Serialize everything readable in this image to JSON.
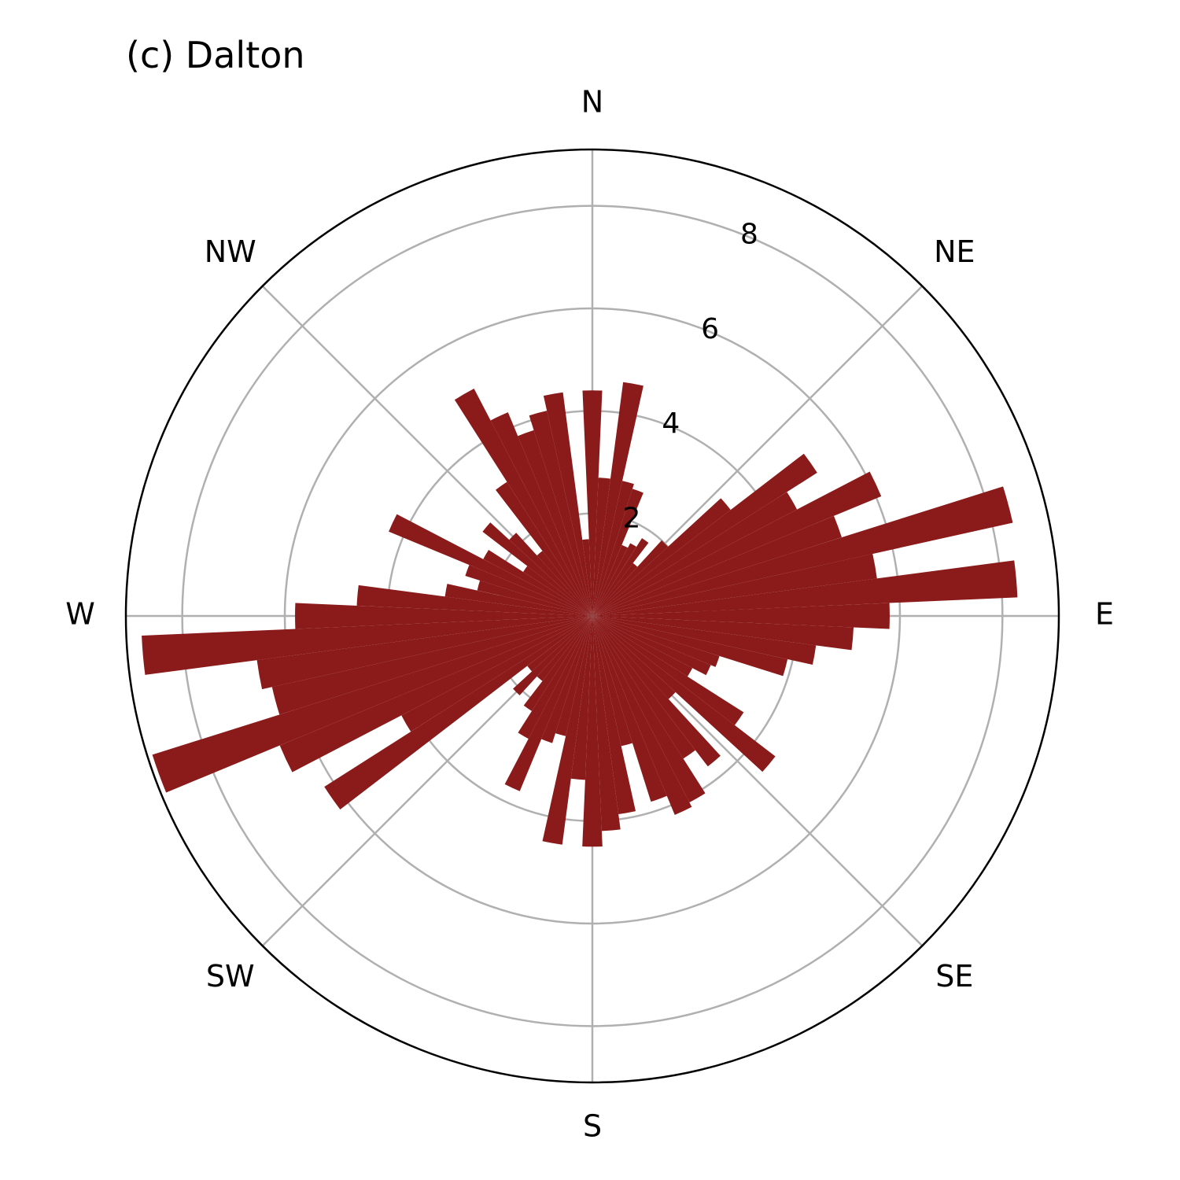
{
  "chart_data": {
    "type": "bar",
    "subtype": "polar-rose",
    "title": "(c) Dalton",
    "directions": [
      "N",
      "NE",
      "E",
      "SE",
      "S",
      "SW",
      "W",
      "NW"
    ],
    "r_ticks": [
      "2",
      "4",
      "6",
      "8"
    ],
    "rlim": [
      0,
      9.1
    ],
    "grid": true,
    "bar_color": "#8b1a1a",
    "bin_width_deg": 5,
    "angles_deg": [
      0,
      5,
      10,
      15,
      20,
      25,
      30,
      35,
      40,
      45,
      50,
      55,
      60,
      65,
      70,
      75,
      80,
      85,
      90,
      95,
      100,
      105,
      110,
      115,
      120,
      125,
      130,
      135,
      140,
      145,
      150,
      155,
      160,
      165,
      170,
      175,
      180,
      185,
      190,
      195,
      200,
      205,
      210,
      215,
      220,
      225,
      230,
      235,
      240,
      245,
      250,
      255,
      260,
      265,
      270,
      275,
      280,
      285,
      290,
      295,
      300,
      305,
      310,
      315,
      320,
      325,
      330,
      335,
      340,
      345,
      350,
      355
    ],
    "values": [
      4.4,
      2.7,
      4.6,
      2.7,
      2.6,
      1.5,
      1.6,
      1.8,
      1.3,
      2.0,
      3.4,
      5.2,
      4.5,
      6.1,
      5.1,
      8.4,
      5.6,
      8.3,
      5.8,
      5.1,
      4.4,
      3.9,
      2.6,
      2.5,
      2.2,
      3.5,
      4.5,
      2.2,
      3.7,
      3.3,
      4.1,
      4.2,
      3.8,
      2.6,
      3.9,
      4.2,
      4.5,
      3.2,
      4.5,
      2.4,
      2.6,
      3.7,
      2.7,
      2.2,
      1.6,
      2.1,
      1.6,
      6.2,
      4.2,
      6.6,
      9.0,
      6.4,
      6.6,
      8.8,
      5.8,
      4.6,
      2.9,
      2.3,
      2.6,
      4.3,
      2.4,
      1.6,
      2.7,
      2.2,
      1.6,
      3.1,
      5.0,
      4.3,
      3.8,
      4.1,
      4.4,
      1.5
    ]
  }
}
